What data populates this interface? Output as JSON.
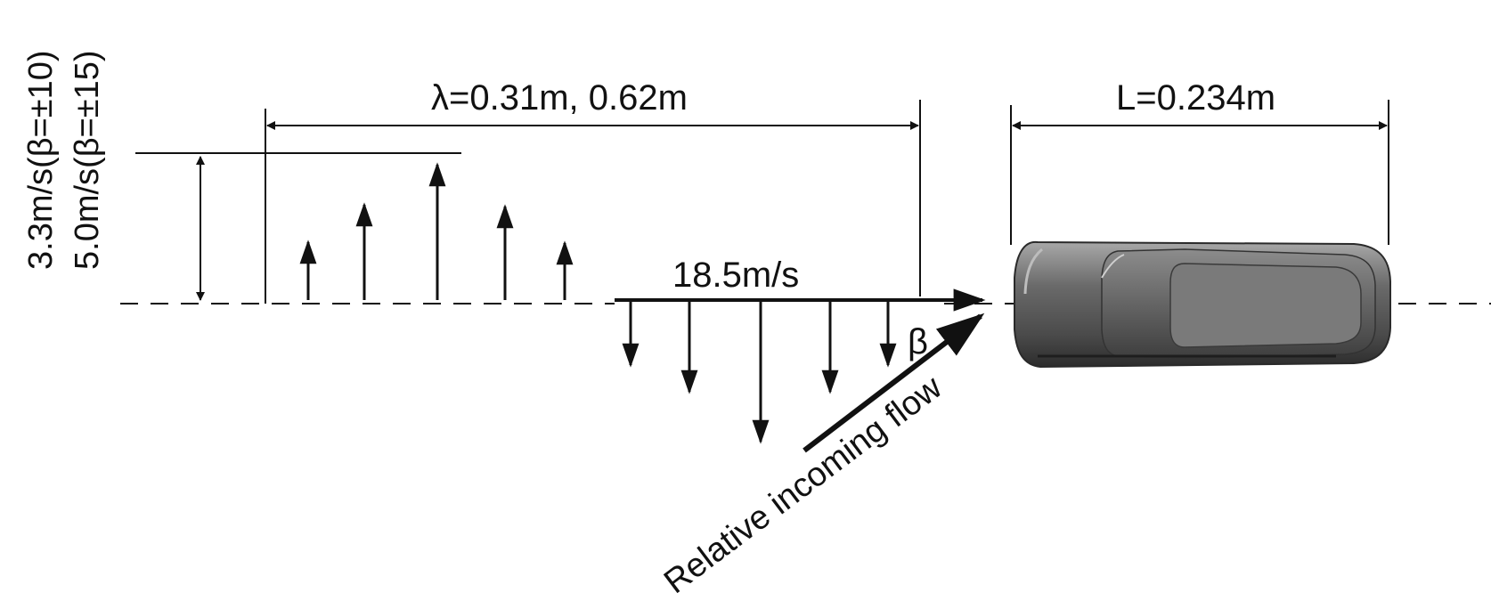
{
  "labels": {
    "wavelength": "λ=0.31m, 0.62m",
    "vehicle_length": "L=0.234m",
    "freestream_speed": "18.5m/s",
    "yaw_angle": "β",
    "relative_flow": "Relative incoming flow",
    "gust_amplitude_1": "3.3m/s(β=±10)",
    "gust_amplitude_2": "5.0m/s(β=±15)"
  },
  "colors": {
    "line": "#111111",
    "car_body": "#5b5b5b",
    "car_highlight": "#9a9a9a",
    "car_shadow": "#2e2e2e",
    "background": "#ffffff"
  },
  "icons": {
    "vehicle": "car-top-view-icon"
  }
}
